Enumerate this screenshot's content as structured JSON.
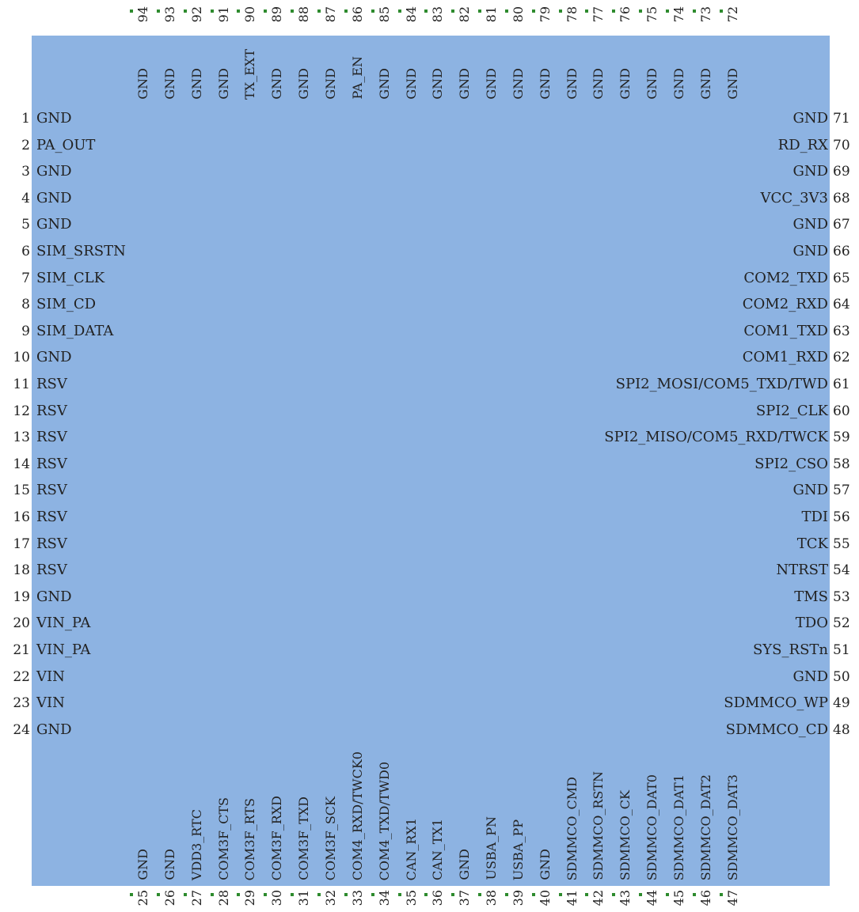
{
  "colors": {
    "body": "#8db3e2",
    "text": "#222222",
    "marker": "#2e8b2e"
  },
  "left": [
    {
      "n": "1",
      "label": "GND"
    },
    {
      "n": "2",
      "label": "PA_OUT"
    },
    {
      "n": "3",
      "label": "GND"
    },
    {
      "n": "4",
      "label": "GND"
    },
    {
      "n": "5",
      "label": "GND"
    },
    {
      "n": "6",
      "label": "SIM_SRSTN"
    },
    {
      "n": "7",
      "label": "SIM_CLK"
    },
    {
      "n": "8",
      "label": "SIM_CD"
    },
    {
      "n": "9",
      "label": "SIM_DATA"
    },
    {
      "n": "10",
      "label": "GND"
    },
    {
      "n": "11",
      "label": "RSV"
    },
    {
      "n": "12",
      "label": "RSV"
    },
    {
      "n": "13",
      "label": "RSV"
    },
    {
      "n": "14",
      "label": "RSV"
    },
    {
      "n": "15",
      "label": "RSV"
    },
    {
      "n": "16",
      "label": "RSV"
    },
    {
      "n": "17",
      "label": "RSV"
    },
    {
      "n": "18",
      "label": "RSV"
    },
    {
      "n": "19",
      "label": "GND"
    },
    {
      "n": "20",
      "label": "VIN_PA"
    },
    {
      "n": "21",
      "label": "VIN_PA"
    },
    {
      "n": "22",
      "label": "VIN"
    },
    {
      "n": "23",
      "label": "VIN"
    },
    {
      "n": "24",
      "label": "GND"
    }
  ],
  "right": [
    {
      "n": "71",
      "label": "GND"
    },
    {
      "n": "70",
      "label": "RD_RX"
    },
    {
      "n": "69",
      "label": "GND"
    },
    {
      "n": "68",
      "label": "VCC_3V3"
    },
    {
      "n": "67",
      "label": "GND"
    },
    {
      "n": "66",
      "label": "GND"
    },
    {
      "n": "65",
      "label": "COM2_TXD"
    },
    {
      "n": "64",
      "label": "COM2_RXD"
    },
    {
      "n": "63",
      "label": "COM1_TXD"
    },
    {
      "n": "62",
      "label": "COM1_RXD"
    },
    {
      "n": "61",
      "label": "SPI2_MOSI/COM5_TXD/TWD"
    },
    {
      "n": "60",
      "label": "SPI2_CLK"
    },
    {
      "n": "59",
      "label": "SPI2_MISO/COM5_RXD/TWCK"
    },
    {
      "n": "58",
      "label": "SPI2_CSO"
    },
    {
      "n": "57",
      "label": "GND"
    },
    {
      "n": "56",
      "label": "TDI"
    },
    {
      "n": "55",
      "label": "TCK"
    },
    {
      "n": "54",
      "label": "NTRST"
    },
    {
      "n": "53",
      "label": "TMS"
    },
    {
      "n": "52",
      "label": "TDO"
    },
    {
      "n": "51",
      "label": "SYS_RSTn"
    },
    {
      "n": "50",
      "label": "GND"
    },
    {
      "n": "49",
      "label": "SDMMCO_WP"
    },
    {
      "n": "48",
      "label": "SDMMCO_CD"
    }
  ],
  "top": [
    {
      "n": "94",
      "label": "GND"
    },
    {
      "n": "93",
      "label": "GND"
    },
    {
      "n": "92",
      "label": "GND"
    },
    {
      "n": "91",
      "label": "GND"
    },
    {
      "n": "90",
      "label": "TX_EXT"
    },
    {
      "n": "89",
      "label": "GND"
    },
    {
      "n": "88",
      "label": "GND"
    },
    {
      "n": "87",
      "label": "GND"
    },
    {
      "n": "86",
      "label": "PA_EN"
    },
    {
      "n": "85",
      "label": "GND"
    },
    {
      "n": "84",
      "label": "GND"
    },
    {
      "n": "83",
      "label": "GND"
    },
    {
      "n": "82",
      "label": "GND"
    },
    {
      "n": "81",
      "label": "GND"
    },
    {
      "n": "80",
      "label": "GND"
    },
    {
      "n": "79",
      "label": "GND"
    },
    {
      "n": "78",
      "label": "GND"
    },
    {
      "n": "77",
      "label": "GND"
    },
    {
      "n": "76",
      "label": "GND"
    },
    {
      "n": "75",
      "label": "GND"
    },
    {
      "n": "74",
      "label": "GND"
    },
    {
      "n": "73",
      "label": "GND"
    },
    {
      "n": "72",
      "label": "GND"
    }
  ],
  "bottom": [
    {
      "n": "25",
      "label": "GND"
    },
    {
      "n": "26",
      "label": "GND"
    },
    {
      "n": "27",
      "label": "VDD3_RTC"
    },
    {
      "n": "28",
      "label": "COM3F_CTS"
    },
    {
      "n": "29",
      "label": "COM3F_RTS"
    },
    {
      "n": "30",
      "label": "COM3F_RXD"
    },
    {
      "n": "31",
      "label": "COM3F_TXD"
    },
    {
      "n": "32",
      "label": "COM3F_SCK"
    },
    {
      "n": "33",
      "label": "COM4_RXD/TWCK0"
    },
    {
      "n": "34",
      "label": "COM4_TXD/TWD0"
    },
    {
      "n": "35",
      "label": "CAN_RX1"
    },
    {
      "n": "36",
      "label": "CAN_TX1"
    },
    {
      "n": "37",
      "label": "GND"
    },
    {
      "n": "38",
      "label": "USBA_PN"
    },
    {
      "n": "39",
      "label": "USBA_PP"
    },
    {
      "n": "40",
      "label": "GND"
    },
    {
      "n": "41",
      "label": "SDMMCO_CMD"
    },
    {
      "n": "42",
      "label": "SDMMCO_RSTN"
    },
    {
      "n": "43",
      "label": "SDMMCO_CK"
    },
    {
      "n": "44",
      "label": "SDMMCO_DAT0"
    },
    {
      "n": "45",
      "label": "SDMMCO_DAT1"
    },
    {
      "n": "46",
      "label": "SDMMCO_DAT2"
    },
    {
      "n": "47",
      "label": "SDMMCO_DAT3"
    }
  ]
}
